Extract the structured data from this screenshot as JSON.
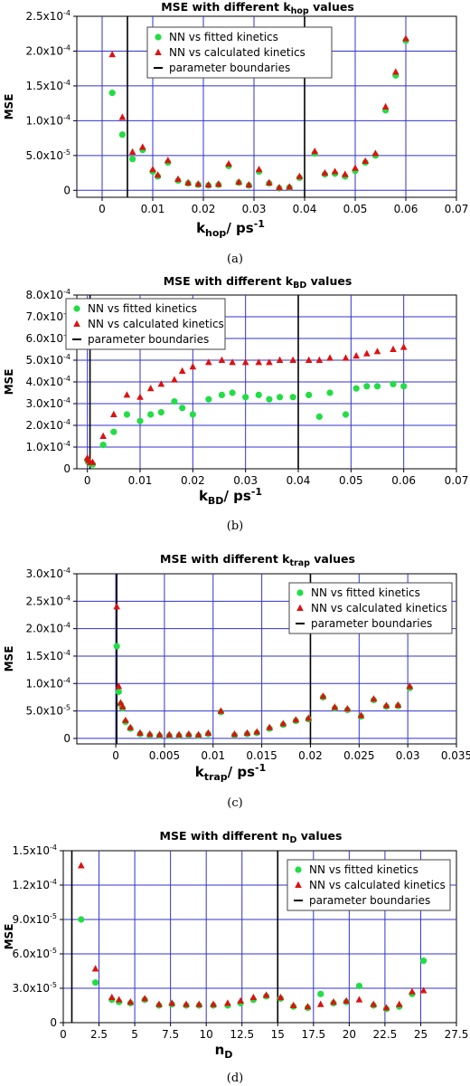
{
  "chart_data": [
    {
      "type": "scatter",
      "panel": "(a)",
      "title": {
        "main": "MSE with different k",
        "sub": "hop",
        "suffix": " values"
      },
      "xlabel": {
        "main": "k",
        "sub": "hop",
        "suffix": "/ ps",
        "sup": "-1"
      },
      "ylabel": "MSE",
      "xlim": [
        -0.005,
        0.07
      ],
      "ylim": [
        -1e-05,
        0.00025
      ],
      "xticks": [
        {
          "v": 0,
          "label": "0"
        },
        {
          "v": 0.01,
          "label": "0.01"
        },
        {
          "v": 0.02,
          "label": "0.02"
        },
        {
          "v": 0.03,
          "label": "0.03"
        },
        {
          "v": 0.04,
          "label": "0.04"
        },
        {
          "v": 0.05,
          "label": "0.05"
        },
        {
          "v": 0.06,
          "label": "0.06"
        },
        {
          "v": 0.07,
          "label": "0.07"
        }
      ],
      "yticks": [
        {
          "v": 0,
          "m": "0",
          "e": ""
        },
        {
          "v": 5e-05,
          "m": "5.0x10",
          "e": "-5"
        },
        {
          "v": 0.0001,
          "m": "1.0x10",
          "e": "-4"
        },
        {
          "v": 0.00015,
          "m": "1.5x10",
          "e": "-4"
        },
        {
          "v": 0.0002,
          "m": "2.0x10",
          "e": "-4"
        },
        {
          "v": 0.00025,
          "m": "2.5x10",
          "e": "-4"
        }
      ],
      "boundaries": [
        0.005,
        0.04
      ],
      "grid": true,
      "legend": {
        "placement": "top-center",
        "entries": [
          "NN vs fitted kinetics",
          "NN vs calculated kinetics",
          "parameter boundaries"
        ]
      },
      "colors": {
        "fitted": "#22dd44",
        "calculated": "#dd1111",
        "boundary": "#000000",
        "grid": "#3333cc"
      },
      "series": [
        {
          "name": "NN vs fitted kinetics",
          "marker": "circle",
          "x": [
            0.002,
            0.004,
            0.006,
            0.008,
            0.01,
            0.011,
            0.013,
            0.015,
            0.017,
            0.019,
            0.021,
            0.023,
            0.025,
            0.027,
            0.029,
            0.031,
            0.033,
            0.035,
            0.037,
            0.039,
            0.042,
            0.044,
            0.046,
            0.048,
            0.05,
            0.052,
            0.054,
            0.056,
            0.058,
            0.06
          ],
          "y": [
            0.00014,
            8e-05,
            4.5e-05,
            5.8e-05,
            2.7e-05,
            2e-05,
            4e-05,
            1.4e-05,
            1e-05,
            8e-06,
            7e-06,
            8e-06,
            3.5e-05,
            1.1e-05,
            7e-06,
            2.7e-05,
            1e-05,
            3e-06,
            4e-06,
            1.8e-05,
            5.3e-05,
            2.3e-05,
            2.4e-05,
            2e-05,
            2.8e-05,
            4e-05,
            5e-05,
            0.000115,
            0.000165,
            0.000215
          ]
        },
        {
          "name": "NN vs calculated kinetics",
          "marker": "triangle",
          "x": [
            0.002,
            0.004,
            0.006,
            0.008,
            0.01,
            0.011,
            0.013,
            0.015,
            0.017,
            0.019,
            0.021,
            0.023,
            0.025,
            0.027,
            0.029,
            0.031,
            0.033,
            0.035,
            0.037,
            0.039,
            0.042,
            0.044,
            0.046,
            0.048,
            0.05,
            0.052,
            0.054,
            0.056,
            0.058,
            0.06
          ],
          "y": [
            0.000195,
            0.000105,
            5.5e-05,
            6.2e-05,
            3e-05,
            2.2e-05,
            4.3e-05,
            1.6e-05,
            1.1e-05,
            9e-06,
            8e-06,
            9e-06,
            3.8e-05,
            1.2e-05,
            8e-06,
            3e-05,
            1.1e-05,
            4e-06,
            5e-06,
            2e-05,
            5.6e-05,
            2.5e-05,
            2.7e-05,
            2.3e-05,
            3.2e-05,
            4.2e-05,
            5.3e-05,
            0.00012,
            0.00017,
            0.000218
          ]
        }
      ]
    },
    {
      "type": "scatter",
      "panel": "(b)",
      "title": {
        "main": "MSE with different k",
        "sub": "BD",
        "suffix": " values"
      },
      "xlabel": {
        "main": "k",
        "sub": "BD",
        "suffix": "/ ps",
        "sup": "-1"
      },
      "ylabel": "MSE",
      "xlim": [
        -0.002,
        0.07
      ],
      "ylim": [
        0,
        0.0008
      ],
      "xticks": [
        {
          "v": 0,
          "label": "0"
        },
        {
          "v": 0.01,
          "label": "0.01"
        },
        {
          "v": 0.02,
          "label": "0.02"
        },
        {
          "v": 0.03,
          "label": "0.03"
        },
        {
          "v": 0.04,
          "label": "0.04"
        },
        {
          "v": 0.05,
          "label": "0.05"
        },
        {
          "v": 0.06,
          "label": "0.06"
        },
        {
          "v": 0.07,
          "label": "0.07"
        }
      ],
      "yticks": [
        {
          "v": 0,
          "m": "0",
          "e": ""
        },
        {
          "v": 0.0001,
          "m": "1.0x10",
          "e": "-4"
        },
        {
          "v": 0.0002,
          "m": "2.0x10",
          "e": "-4"
        },
        {
          "v": 0.0003,
          "m": "3.0x10",
          "e": "-4"
        },
        {
          "v": 0.0004,
          "m": "4.0x10",
          "e": "-4"
        },
        {
          "v": 0.0005,
          "m": "5.0x10",
          "e": "-4"
        },
        {
          "v": 0.0006,
          "m": "6.0x10",
          "e": "-4"
        },
        {
          "v": 0.0007,
          "m": "7.0x10",
          "e": "-4"
        },
        {
          "v": 0.0008,
          "m": "8.0x10",
          "e": "-4"
        }
      ],
      "boundaries": [
        0.0005,
        0.04
      ],
      "grid": true,
      "legend": {
        "placement": "top-left",
        "entries": [
          "NN vs fitted kinetics",
          "NN vs calculated kinetics",
          "parameter boundaries"
        ]
      },
      "colors": {
        "fitted": "#22dd44",
        "calculated": "#dd1111",
        "boundary": "#000000",
        "grid": "#3333cc"
      },
      "series": [
        {
          "name": "NN vs fitted kinetics",
          "marker": "circle",
          "x": [
            0,
            0.0002,
            0.0005,
            0.001,
            0.003,
            0.005,
            0.0075,
            0.01,
            0.012,
            0.014,
            0.0165,
            0.018,
            0.02,
            0.023,
            0.0255,
            0.0275,
            0.03,
            0.0325,
            0.0345,
            0.0365,
            0.039,
            0.042,
            0.044,
            0.046,
            0.049,
            0.051,
            0.053,
            0.055,
            0.058,
            0.06
          ],
          "y": [
            4e-05,
            3e-05,
            2.5e-05,
            2e-05,
            0.00011,
            0.00017,
            0.00025,
            0.00022,
            0.00025,
            0.00026,
            0.00031,
            0.00028,
            0.00025,
            0.00032,
            0.00034,
            0.00035,
            0.00033,
            0.00034,
            0.00032,
            0.00033,
            0.00033,
            0.00034,
            0.00024,
            0.00035,
            0.00025,
            0.00037,
            0.00038,
            0.00038,
            0.00039,
            0.00038
          ]
        },
        {
          "name": "NN vs calculated kinetics",
          "marker": "triangle",
          "x": [
            0,
            0.0002,
            0.0005,
            0.001,
            0.003,
            0.005,
            0.0075,
            0.01,
            0.012,
            0.014,
            0.0165,
            0.018,
            0.02,
            0.023,
            0.0255,
            0.0275,
            0.03,
            0.0325,
            0.0345,
            0.0365,
            0.039,
            0.042,
            0.044,
            0.046,
            0.049,
            0.051,
            0.053,
            0.055,
            0.058,
            0.06
          ],
          "y": [
            5e-05,
            4e-05,
            3e-05,
            3e-05,
            0.00015,
            0.00025,
            0.00034,
            0.00033,
            0.00037,
            0.00039,
            0.00041,
            0.00045,
            0.00047,
            0.00049,
            0.0005,
            0.00049,
            0.00049,
            0.00049,
            0.00049,
            0.0005,
            0.0005,
            0.0005,
            0.0005,
            0.00051,
            0.00051,
            0.00052,
            0.00053,
            0.00054,
            0.00055,
            0.00056
          ]
        }
      ]
    },
    {
      "type": "scatter",
      "panel": "(c)",
      "title": {
        "main": "MSE with different k",
        "sub": "trap",
        "suffix": " values"
      },
      "xlabel": {
        "main": "k",
        "sub": "trap",
        "suffix": "/ ps",
        "sup": "-1"
      },
      "ylabel": "MSE",
      "xlim": [
        -0.004,
        0.035
      ],
      "ylim": [
        -1e-05,
        0.0003
      ],
      "xticks": [
        {
          "v": 0,
          "label": "0"
        },
        {
          "v": 0.005,
          "label": "0.005"
        },
        {
          "v": 0.01,
          "label": "0.01"
        },
        {
          "v": 0.015,
          "label": "0.015"
        },
        {
          "v": 0.02,
          "label": "0.02"
        },
        {
          "v": 0.025,
          "label": "0.025"
        },
        {
          "v": 0.03,
          "label": "0.03"
        },
        {
          "v": 0.035,
          "label": "0.035"
        }
      ],
      "yticks": [
        {
          "v": 0,
          "m": "0",
          "e": ""
        },
        {
          "v": 5e-05,
          "m": "5.0x10",
          "e": "-5"
        },
        {
          "v": 0.0001,
          "m": "1.0x10",
          "e": "-4"
        },
        {
          "v": 0.00015,
          "m": "1.5x10",
          "e": "-4"
        },
        {
          "v": 0.0002,
          "m": "2.0x10",
          "e": "-4"
        },
        {
          "v": 0.00025,
          "m": "2.5x10",
          "e": "-4"
        },
        {
          "v": 0.0003,
          "m": "3.0x10",
          "e": "-4"
        }
      ],
      "boundaries": [
        0.0001,
        0.02
      ],
      "grid": true,
      "legend": {
        "placement": "top-right",
        "entries": [
          "NN vs fitted kinetics",
          "NN vs calculated kinetics",
          "parameter boundaries"
        ]
      },
      "colors": {
        "fitted": "#22dd44",
        "calculated": "#dd1111",
        "boundary": "#000000",
        "grid": "#3333cc"
      },
      "series": [
        {
          "name": "NN vs fitted kinetics",
          "marker": "circle",
          "x": [
            0.0001,
            0.0003,
            0.0005,
            0.0007,
            0.001,
            0.0015,
            0.0025,
            0.0035,
            0.0045,
            0.0055,
            0.0065,
            0.0075,
            0.0085,
            0.0095,
            0.0108,
            0.0122,
            0.0135,
            0.0145,
            0.0158,
            0.0172,
            0.0185,
            0.0198,
            0.0213,
            0.0225,
            0.0238,
            0.0252,
            0.0265,
            0.0278,
            0.029,
            0.0302
          ],
          "y": [
            0.000168,
            8.5e-05,
            6.2e-05,
            5.5e-05,
            3e-05,
            1.8e-05,
            8e-06,
            6e-06,
            5e-06,
            5e-06,
            5e-06,
            6e-06,
            5e-06,
            8e-06,
            4.8e-05,
            6e-06,
            8e-06,
            1e-05,
            1.8e-05,
            2.5e-05,
            3.2e-05,
            3.5e-05,
            7.5e-05,
            5.5e-05,
            5.2e-05,
            4e-05,
            7e-05,
            5.8e-05,
            5.9e-05,
            9.2e-05
          ]
        },
        {
          "name": "NN vs calculated kinetics",
          "marker": "triangle",
          "x": [
            0.0001,
            0.0003,
            0.0005,
            0.0007,
            0.001,
            0.0015,
            0.0025,
            0.0035,
            0.0045,
            0.0055,
            0.0065,
            0.0075,
            0.0085,
            0.0095,
            0.0108,
            0.0122,
            0.0135,
            0.0145,
            0.0158,
            0.0172,
            0.0185,
            0.0198,
            0.0213,
            0.0225,
            0.0238,
            0.0252,
            0.0265,
            0.0278,
            0.029,
            0.0302
          ],
          "y": [
            0.00024,
            9.5e-05,
            6.5e-05,
            5.8e-05,
            3.3e-05,
            2e-05,
            1e-05,
            8e-06,
            7e-06,
            7e-06,
            7e-06,
            8e-06,
            7e-06,
            1e-05,
            5e-05,
            8e-06,
            1e-05,
            1.2e-05,
            2e-05,
            2.7e-05,
            3.4e-05,
            3.7e-05,
            7.7e-05,
            5.7e-05,
            5.4e-05,
            4.2e-05,
            7.2e-05,
            6e-05,
            6.1e-05,
            9.5e-05
          ]
        }
      ]
    },
    {
      "type": "scatter",
      "panel": "(d)",
      "title": {
        "main": "MSE with different n",
        "sub": "D",
        "suffix": " values"
      },
      "xlabel": {
        "main": "n",
        "sub": "D",
        "suffix": "",
        "sup": ""
      },
      "ylabel": "MSE",
      "xlim": [
        0,
        27.5
      ],
      "ylim": [
        0,
        0.00015
      ],
      "xticks": [
        {
          "v": 0,
          "label": "0"
        },
        {
          "v": 2.5,
          "label": "2.5"
        },
        {
          "v": 5,
          "label": "5"
        },
        {
          "v": 7.5,
          "label": "7.5"
        },
        {
          "v": 10,
          "label": "10"
        },
        {
          "v": 12.5,
          "label": "12.5"
        },
        {
          "v": 15,
          "label": "15"
        },
        {
          "v": 17.5,
          "label": "17.5"
        },
        {
          "v": 20,
          "label": "20"
        },
        {
          "v": 22.5,
          "label": "22.5"
        },
        {
          "v": 25,
          "label": "25"
        },
        {
          "v": 27.5,
          "label": "27.5"
        }
      ],
      "yticks": [
        {
          "v": 0,
          "m": "0",
          "e": ""
        },
        {
          "v": 3e-05,
          "m": "3.0x10",
          "e": "-5"
        },
        {
          "v": 6e-05,
          "m": "6.0x10",
          "e": "-5"
        },
        {
          "v": 9e-05,
          "m": "9.0x10",
          "e": "-5"
        },
        {
          "v": 0.00012,
          "m": "1.2x10",
          "e": "-4"
        },
        {
          "v": 0.00015,
          "m": "1.5x10",
          "e": "-4"
        }
      ],
      "boundaries": [
        0.6,
        15
      ],
      "grid": true,
      "legend": {
        "placement": "top-right",
        "entries": [
          "NN vs fitted kinetics",
          "NN vs calculated kinetics",
          "parameter boundaries"
        ]
      },
      "colors": {
        "fitted": "#22dd44",
        "calculated": "#dd1111",
        "boundary": "#000000",
        "grid": "#3333cc"
      },
      "series": [
        {
          "name": "NN vs fitted kinetics",
          "marker": "circle",
          "x": [
            1.25,
            2.25,
            3.4,
            3.9,
            4.7,
            5.7,
            6.7,
            7.6,
            8.6,
            9.5,
            10.5,
            11.5,
            12.4,
            13.3,
            14.2,
            15.2,
            16.1,
            17.1,
            18.0,
            18.9,
            19.8,
            20.7,
            21.7,
            22.6,
            23.5,
            24.4,
            25.2
          ],
          "y": [
            9e-05,
            3.5e-05,
            2e-05,
            1.8e-05,
            1.7e-05,
            2e-05,
            1.5e-05,
            1.6e-05,
            1.5e-05,
            1.5e-05,
            1.5e-05,
            1.5e-05,
            1.7e-05,
            2e-05,
            2.3e-05,
            2.1e-05,
            1.4e-05,
            1.3e-05,
            2.5e-05,
            1.7e-05,
            1.8e-05,
            3.2e-05,
            1.5e-05,
            1.2e-05,
            1.4e-05,
            2.5e-05,
            5.4e-05
          ]
        },
        {
          "name": "NN vs calculated kinetics",
          "marker": "triangle",
          "x": [
            1.25,
            2.25,
            3.4,
            3.9,
            4.7,
            5.7,
            6.7,
            7.6,
            8.6,
            9.5,
            10.5,
            11.5,
            12.4,
            13.3,
            14.2,
            15.2,
            16.1,
            17.1,
            18.0,
            18.9,
            19.8,
            20.7,
            21.7,
            22.6,
            23.5,
            24.4,
            25.2
          ],
          "y": [
            0.000137,
            4.7e-05,
            2.2e-05,
            2e-05,
            1.8e-05,
            2.1e-05,
            1.6e-05,
            1.7e-05,
            1.6e-05,
            1.6e-05,
            1.6e-05,
            1.7e-05,
            1.9e-05,
            2.2e-05,
            2.4e-05,
            2.2e-05,
            1.5e-05,
            1.4e-05,
            1.6e-05,
            1.8e-05,
            1.9e-05,
            2e-05,
            1.6e-05,
            1.3e-05,
            1.6e-05,
            2.7e-05,
            2.8e-05
          ]
        }
      ]
    }
  ]
}
